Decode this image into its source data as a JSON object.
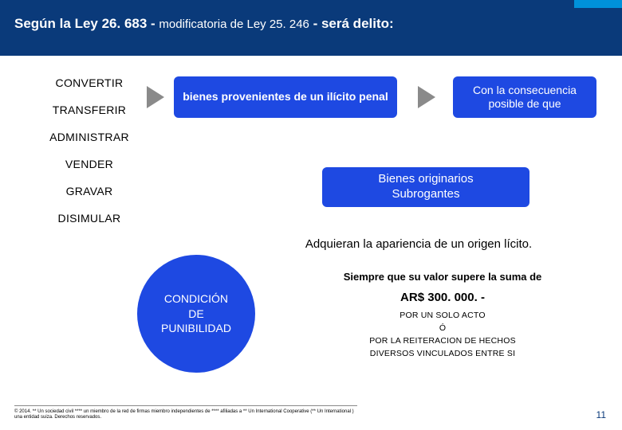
{
  "colors": {
    "band": "#0a3a7a",
    "accent": "#0091da",
    "box_blue": "#1e49e2",
    "arrow_gray": "#8a8a8a",
    "arrow_navy": "#0a2a66",
    "circle": "#1e49e2",
    "page": "#0a3a7a"
  },
  "title": {
    "prefix": "Según la Ley 26. 683 - ",
    "mid": "modificatoria de Ley 25. 246",
    "suffix": " - será delito:"
  },
  "verbs": [
    "CONVERTIR",
    "TRANSFERIR",
    "ADMINISTRAR",
    "VENDER",
    "GRAVAR",
    "DISIMULAR"
  ],
  "box1": "bienes provenientes de un ilícito penal",
  "box2": "Con la consecuencia posible de que",
  "box3_l1": "Bienes originarios",
  "box3_l2": "Subrogantes",
  "apariencia": "Adquieran la apariencia de un origen lícito.",
  "circle_l1": "CONDICIÓN",
  "circle_l2": "DE",
  "circle_l3": "PUNIBILIDAD",
  "siempre": "Siempre que su valor supere la suma de",
  "amount": "AR$ 300. 000. -",
  "sub1": "POR UN SOLO ACTO",
  "sub2": "Ó",
  "sub3": "POR LA REITERACION DE HECHOS",
  "sub4": "DIVERSOS VINCULADOS ENTRE SI",
  "footer": "© 2014. ** Un sociedad civil **** un miembro de la red de firmas miembro independientes de **** afiliadas a ** Un International Cooperative (** Un International ) una entidad suiza. Derechos reservados.",
  "page": "11"
}
